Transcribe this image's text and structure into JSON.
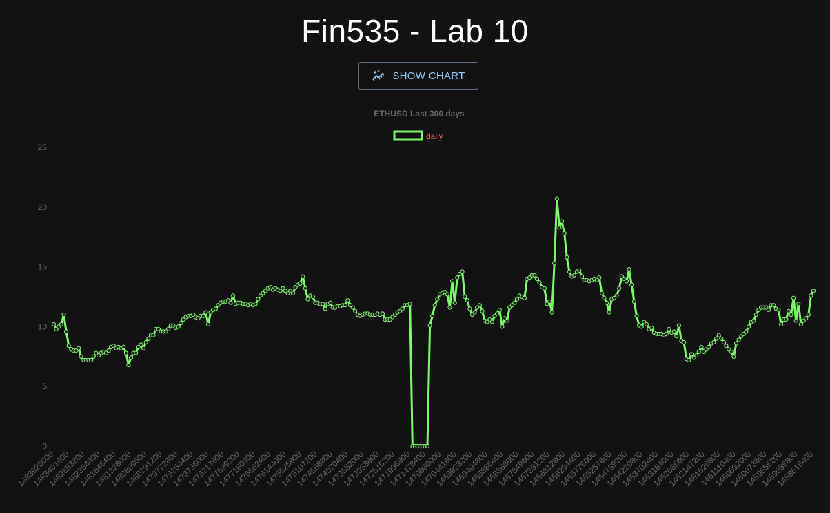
{
  "header": {
    "title": "Fin535 - Lab 10"
  },
  "toolbar": {
    "show_chart_label": "SHOW CHART",
    "show_chart_icon": "auto-graph-icon"
  },
  "colors": {
    "background": "#121212",
    "line": "#7cf96a",
    "point_fill": "#262626",
    "legend_text": "#e36464",
    "axis_text": "#666666",
    "button_text": "#90caf9"
  },
  "chart_data": {
    "type": "line",
    "title": "ETHUSD Last 300 days",
    "xlabel": "",
    "ylabel": "",
    "ylim": [
      0,
      25
    ],
    "yticks": [
      0,
      5,
      10,
      15,
      20,
      25
    ],
    "grid": false,
    "legend_position": "top",
    "x_tick_labels": [
      "1483920000",
      "1483401600",
      "1482883200",
      "1482364800",
      "1481846400",
      "1481328000",
      "1480809600",
      "1480291200",
      "1479772800",
      "1479254400",
      "1478736000",
      "1478217600",
      "1477699200",
      "1477180800",
      "1476662400",
      "1476144000",
      "1475625600",
      "1475107200",
      "1474588800",
      "1474070400",
      "1473552000",
      "1473033600",
      "1472515200",
      "1471996800",
      "1471478400",
      "1470960000",
      "1470441600",
      "1469923200",
      "1469404800",
      "1468886400",
      "1468368000",
      "1467849600",
      "1467331200",
      "1466812800",
      "1466294400",
      "1465776000",
      "1465257600",
      "1464739200",
      "1464220800",
      "1463702400",
      "1463184000",
      "1462665600",
      "1462147200",
      "1461628800",
      "1461110400",
      "1460592000",
      "1460073600",
      "1459555200",
      "1459036800",
      "1458518400"
    ],
    "series": [
      {
        "name": "daily",
        "values": [
          10.2,
          9.8,
          10.0,
          10.2,
          11.0,
          9.6,
          8.4,
          8.1,
          8.0,
          8.0,
          8.2,
          7.5,
          7.2,
          7.2,
          7.2,
          7.2,
          7.5,
          7.8,
          7.6,
          7.8,
          7.9,
          7.8,
          8.0,
          8.3,
          8.4,
          8.2,
          8.3,
          8.2,
          8.3,
          7.8,
          6.8,
          7.4,
          7.8,
          7.8,
          8.3,
          8.5,
          8.2,
          8.7,
          9.0,
          9.3,
          9.3,
          9.8,
          9.8,
          9.6,
          9.6,
          9.6,
          9.8,
          10.1,
          10.1,
          9.9,
          10.0,
          10.3,
          10.6,
          10.8,
          10.9,
          10.9,
          11.0,
          10.8,
          10.7,
          10.9,
          10.9,
          11.2,
          10.2,
          11.2,
          11.4,
          11.5,
          11.8,
          12.0,
          12.1,
          12.1,
          12.2,
          12.0,
          12.6,
          11.9,
          12.0,
          12.0,
          11.9,
          11.9,
          11.8,
          11.9,
          11.8,
          11.9,
          12.3,
          12.6,
          12.8,
          13.0,
          13.2,
          13.3,
          13.1,
          13.2,
          13.1,
          13.0,
          13.2,
          13.0,
          12.8,
          13.0,
          12.8,
          13.3,
          13.5,
          13.6,
          14.2,
          13.2,
          12.3,
          12.6,
          12.5,
          12.0,
          12.0,
          11.9,
          11.9,
          11.5,
          11.9,
          12.0,
          11.6,
          11.6,
          11.7,
          11.7,
          11.8,
          11.8,
          12.2,
          11.8,
          11.6,
          11.3,
          11.0,
          10.9,
          11.0,
          11.1,
          11.1,
          11.0,
          11.0,
          11.0,
          11.1,
          11.0,
          11.1,
          10.6,
          10.6,
          10.6,
          10.8,
          11.0,
          11.2,
          11.3,
          11.5,
          11.8,
          11.8,
          11.9,
          0,
          0,
          0,
          0,
          0,
          0,
          0,
          10.1,
          10.9,
          11.8,
          12.3,
          12.7,
          12.8,
          12.9,
          12.7,
          11.6,
          13.8,
          12.0,
          14.1,
          14.4,
          14.6,
          12.5,
          12.2,
          11.5,
          11.0,
          11.2,
          11.6,
          11.8,
          11.3,
          10.5,
          10.4,
          10.6,
          10.4,
          10.9,
          11.1,
          11.4,
          10.0,
          10.7,
          10.5,
          11.6,
          11.8,
          12.0,
          12.3,
          12.6,
          12.5,
          12.4,
          14.0,
          14.1,
          14.3,
          14.3,
          14.0,
          13.7,
          13.3,
          13.2,
          11.9,
          12.1,
          11.2,
          15.3,
          20.7,
          18.3,
          18.8,
          17.8,
          15.8,
          14.6,
          14.2,
          14.3,
          14.6,
          14.7,
          14.2,
          13.9,
          13.9,
          13.8,
          13.9,
          14.0,
          13.9,
          14.1,
          12.8,
          12.4,
          12.0,
          11.2,
          12.3,
          12.4,
          12.6,
          13.2,
          14.2,
          14.0,
          13.8,
          14.8,
          13.5,
          12.1,
          10.9,
          10.1,
          10.0,
          10.4,
          10.2,
          9.8,
          9.9,
          9.5,
          9.4,
          9.4,
          9.4,
          9.3,
          9.4,
          9.8,
          9.5,
          9.6,
          9.2,
          10.1,
          8.8,
          8.7,
          7.3,
          7.2,
          7.7,
          7.4,
          7.6,
          7.9,
          8.3,
          7.9,
          8.1,
          8.3,
          8.6,
          8.7,
          9.0,
          9.3,
          9.0,
          8.7,
          8.4,
          8.1,
          7.9,
          7.5,
          8.6,
          8.9,
          9.2,
          9.4,
          9.6,
          10.0,
          10.4,
          10.5,
          11.0,
          11.4,
          11.6,
          11.6,
          11.6,
          11.4,
          11.8,
          11.8,
          11.5,
          11.4,
          10.2,
          10.6,
          10.6,
          11.3,
          11.0,
          12.4,
          10.5,
          11.9,
          10.2,
          10.5,
          10.7,
          11.0,
          12.6,
          13.0
        ]
      }
    ]
  }
}
